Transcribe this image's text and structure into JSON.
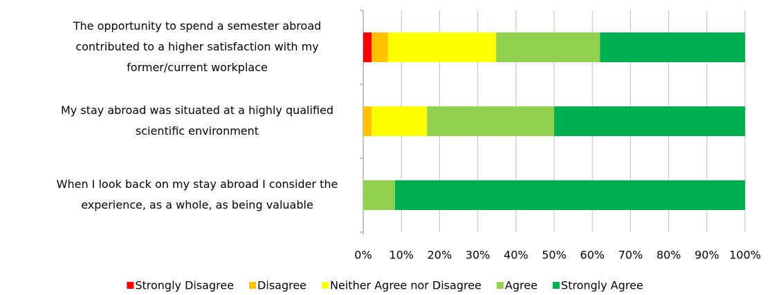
{
  "chart_data": {
    "type": "stacked-bar-horizontal",
    "categories": [
      [
        "The opportunity to spend a semester abroad",
        "contributed to a higher satisfaction with my",
        "former/current workplace"
      ],
      [
        "My stay abroad was situated at a highly qualified",
        "scientific environment"
      ],
      [
        "When I look back on my stay abroad I consider the",
        "experience, as a whole, as being valuable"
      ]
    ],
    "series": [
      {
        "name": "Strongly Disagree",
        "color": "#ff0000",
        "values": [
          2.2,
          0,
          0
        ]
      },
      {
        "name": "Disagree",
        "color": "#ffc000",
        "values": [
          4.3,
          2.2,
          0
        ]
      },
      {
        "name": "Neither Agree nor Disagree",
        "color": "#ffff00",
        "values": [
          28.3,
          14.5,
          0
        ]
      },
      {
        "name": "Agree",
        "color": "#92d050",
        "values": [
          27.2,
          33.3,
          8.3
        ]
      },
      {
        "name": "Strongly Agree",
        "color": "#00b050",
        "values": [
          38,
          50,
          91.7
        ]
      }
    ],
    "xlim": [
      0,
      100
    ],
    "xticks": [
      {
        "value": 0,
        "label": "0%"
      },
      {
        "value": 10,
        "label": "10%"
      },
      {
        "value": 20,
        "label": "20%"
      },
      {
        "value": 30,
        "label": "30%"
      },
      {
        "value": 40,
        "label": "40%"
      },
      {
        "value": 50,
        "label": "50%"
      },
      {
        "value": 60,
        "label": "60%"
      },
      {
        "value": 70,
        "label": "70%"
      },
      {
        "value": 80,
        "label": "80%"
      },
      {
        "value": 90,
        "label": "90%"
      },
      {
        "value": 100,
        "label": "100%"
      }
    ],
    "grid": true,
    "legend": "bottom"
  }
}
